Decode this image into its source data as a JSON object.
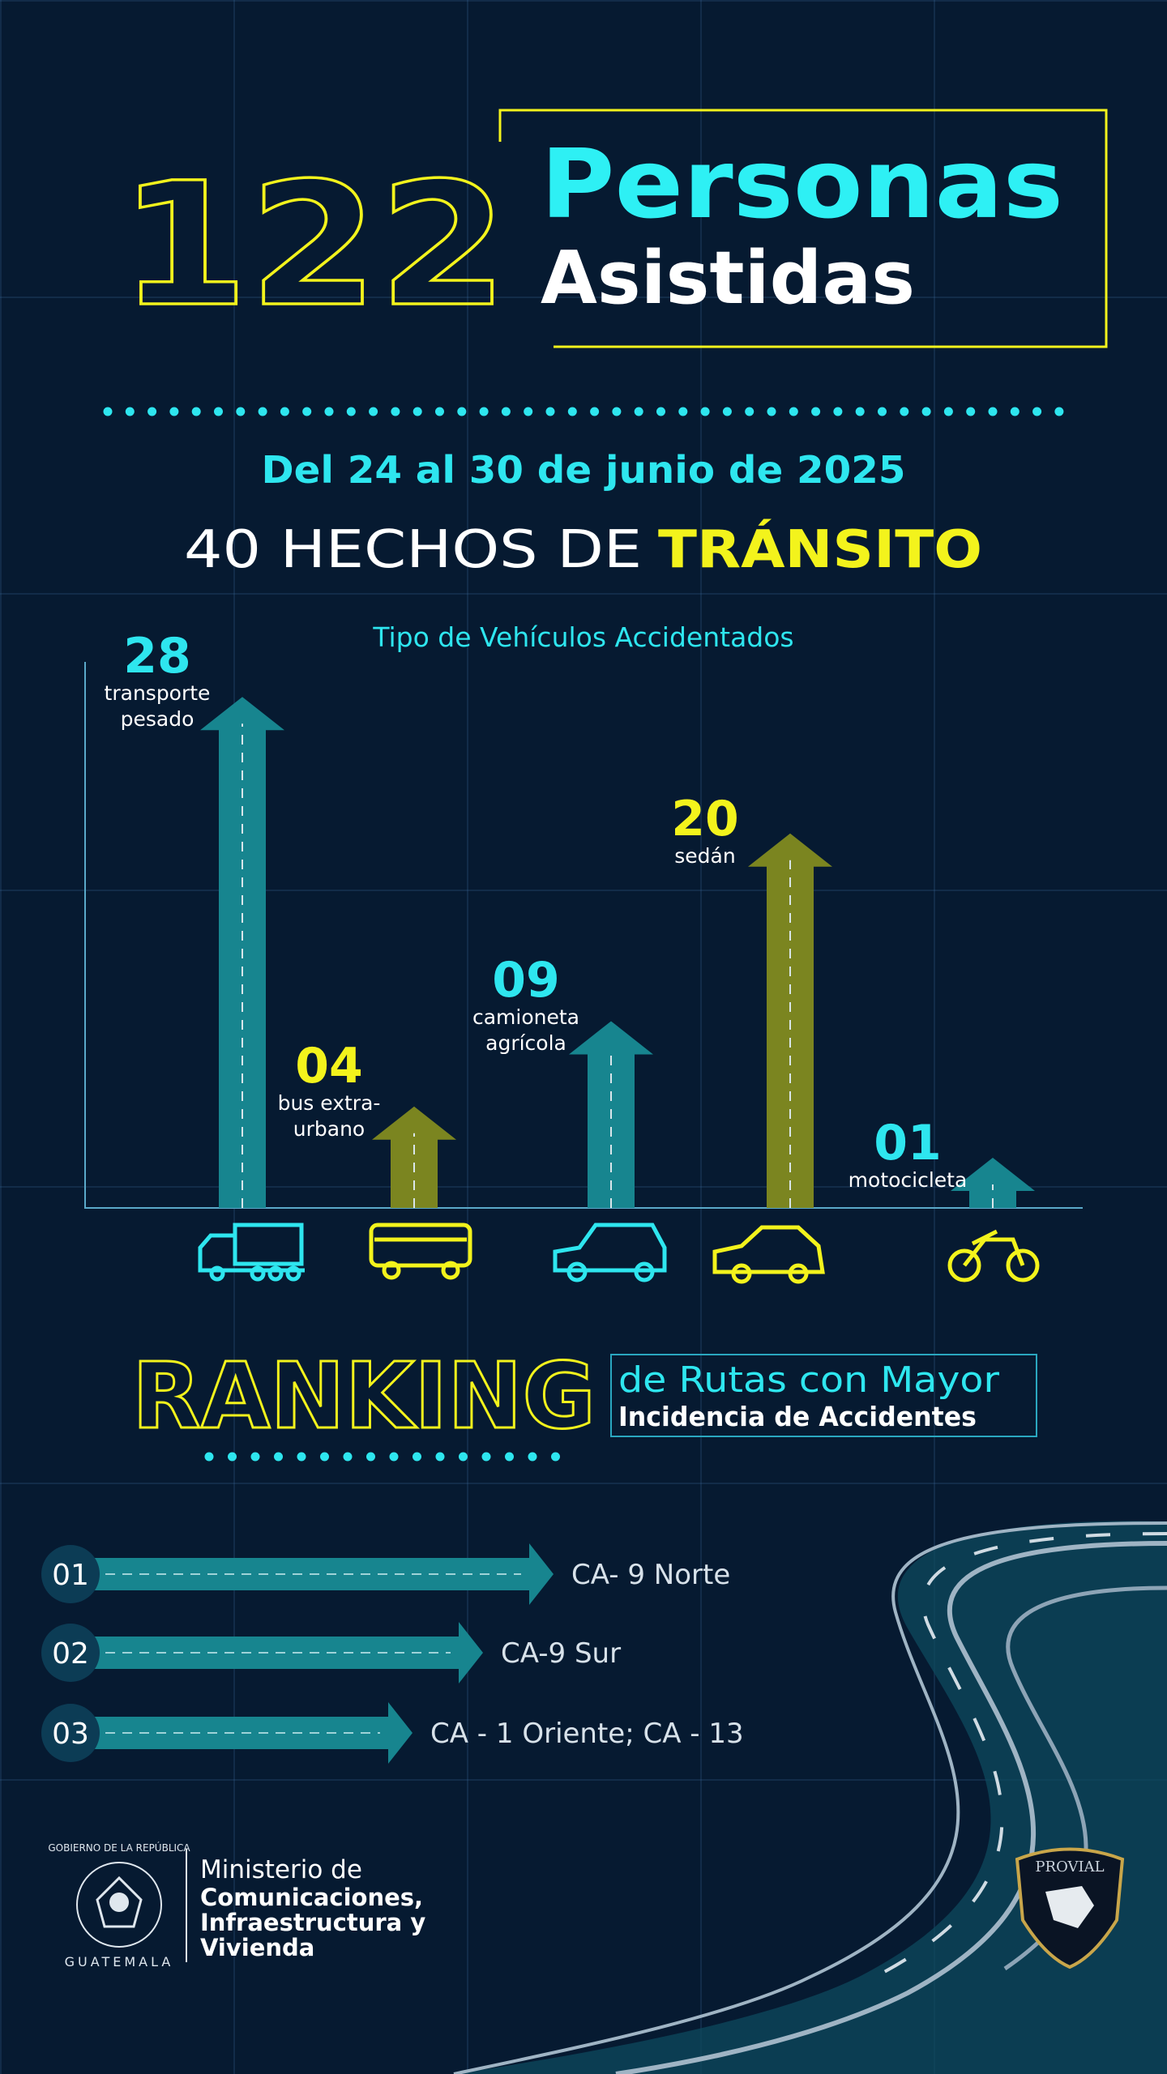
{
  "header": {
    "count": "122",
    "title": "Personas",
    "subtitle": "Asistidas",
    "period": "Del 24 al 30 de junio de 2025",
    "incidents_prefix": "40 HECHOS DE",
    "incidents_highlight": "TRÁNSITO"
  },
  "chart_data": {
    "type": "bar",
    "title": "Tipo de Vehículos Accidentados",
    "categories": [
      "transporte pesado",
      "bus extra-urbano",
      "camioneta agrícola",
      "sedán",
      "motocicleta"
    ],
    "values": [
      28,
      4,
      9,
      20,
      1
    ],
    "value_labels": [
      "28",
      "04",
      "09",
      "20",
      "01"
    ],
    "colors": [
      "#17858f",
      "#7b8520",
      "#17858f",
      "#7b8520",
      "#17858f"
    ],
    "label_colors": [
      "#2ee6ef",
      "#f3f31c",
      "#2ee6ef",
      "#f3f31c",
      "#2ee6ef"
    ],
    "ylim": [
      0,
      32
    ]
  },
  "ranking": {
    "title": "RANKING",
    "subtitle_1": "de Rutas con Mayor",
    "subtitle_2": "Incidencia de Accidentes",
    "items": [
      {
        "rank": "01",
        "route": "CA- 9 Norte"
      },
      {
        "rank": "02",
        "route": "CA-9 Sur"
      },
      {
        "rank": "03",
        "route": "CA - 1 Oriente; CA - 13"
      }
    ]
  },
  "footer": {
    "seal_top": "GOBIERNO DE LA REPÚBLICA",
    "seal_bottom": "GUATEMALA",
    "ministry_1": "Ministerio de",
    "ministry_2": "Comunicaciones,",
    "ministry_3": "Infraestructura y",
    "ministry_4": "Vivienda",
    "badge": "PROVIAL"
  }
}
